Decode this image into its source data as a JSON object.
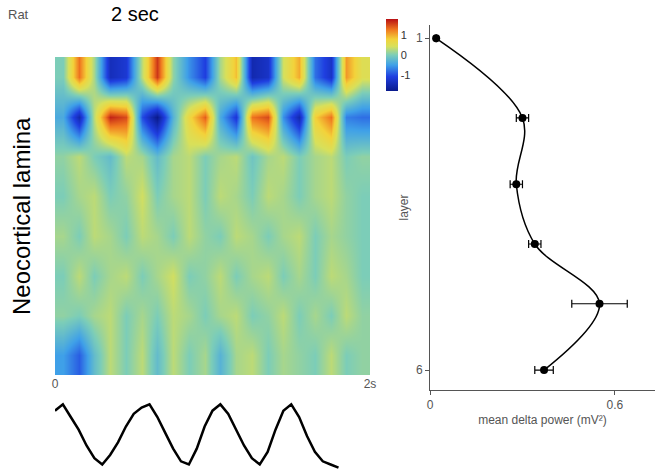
{
  "chart_data": [
    {
      "type": "heatmap",
      "title": "2 sec",
      "annotation": "Rat",
      "ylabel": "Neocortical lamina",
      "x": [
        0.05,
        0.15,
        0.25,
        0.35,
        0.45,
        0.55,
        0.65,
        0.75,
        0.85,
        0.95,
        1.05,
        1.15,
        1.25,
        1.35,
        1.45,
        1.55,
        1.65,
        1.75,
        1.85,
        1.95
      ],
      "xlim": [
        0,
        2
      ],
      "xticks": [
        0,
        {
          "value": 2,
          "label": "2s"
        }
      ],
      "tick_labels": "x",
      "z": [
        [
          0,
          1.3,
          0.2,
          -1.4,
          -1.2,
          0.3,
          1.6,
          0.1,
          -0.6,
          -1.1,
          0.2,
          0.9,
          -1.5,
          -1.3,
          0.4,
          1.0,
          -0.8,
          -1.3,
          1.1,
          0.5
        ],
        [
          -0.4,
          -1.5,
          0.3,
          1.7,
          1.5,
          -1.0,
          -1.8,
          -0.3,
          0.7,
          1.4,
          -0.4,
          -1.2,
          1.3,
          1.5,
          -0.6,
          -1.5,
          0.8,
          1.3,
          -0.7,
          -0.8
        ],
        [
          0.1,
          0.3,
          0,
          -0.2,
          0.3,
          0.2,
          -0.2,
          0.2,
          0.3,
          0,
          0.2,
          0.3,
          -0.1,
          0.2,
          0.3,
          0,
          0.2,
          0.3,
          0,
          0.1
        ],
        [
          0,
          0.2,
          0.3,
          0,
          0.1,
          0.4,
          0,
          0.2,
          0.3,
          0,
          0.3,
          0.2,
          0,
          0.3,
          0.2,
          0,
          0.2,
          0.3,
          0.1,
          0
        ],
        [
          0.2,
          0,
          0.3,
          0.2,
          0,
          0.3,
          0.2,
          0,
          0.3,
          0.1,
          0,
          0.3,
          0.2,
          0,
          0.2,
          0.3,
          0,
          0.2,
          0.1,
          0
        ],
        [
          0,
          0.3,
          0,
          0.2,
          0.3,
          0,
          0.2,
          0.4,
          0,
          0.1,
          0.3,
          0,
          0.2,
          0.3,
          0,
          0.2,
          0,
          0.3,
          0.2,
          0
        ],
        [
          0.1,
          0,
          0.2,
          0.3,
          0,
          0.2,
          0,
          0.3,
          0.2,
          0,
          0.2,
          0.3,
          0,
          0.1,
          0.3,
          0,
          0.2,
          0,
          0.3,
          0.1
        ],
        [
          -0.5,
          -0.9,
          -0.2,
          0.3,
          0,
          0.3,
          -0.2,
          0.3,
          0,
          0.2,
          -0.3,
          0.2,
          0.3,
          0,
          0.2,
          0.1,
          0,
          0.3,
          0,
          0.1
        ]
      ],
      "colorbar": {
        "range": [
          -1.8,
          1.8
        ],
        "ticks": [
          1,
          0,
          -1
        ]
      }
    },
    {
      "type": "line",
      "color": "#000000",
      "tick_labels": false,
      "x": [
        0,
        0.05,
        0.1,
        0.15,
        0.2,
        0.25,
        0.3,
        0.35,
        0.4,
        0.45,
        0.5,
        0.55,
        0.6,
        0.65,
        0.7,
        0.75,
        0.8,
        0.85,
        0.9,
        0.95,
        1.0,
        1.05,
        1.1,
        1.15,
        1.2,
        1.25,
        1.3,
        1.35,
        1.4,
        1.45,
        1.5,
        1.55,
        1.6,
        1.65,
        1.7,
        1.75,
        1.8
      ],
      "values": [
        0.8,
        1.0,
        0.6,
        0.2,
        -0.3,
        -0.7,
        -0.9,
        -0.6,
        -0.2,
        0.3,
        0.7,
        0.9,
        1.0,
        0.6,
        0.1,
        -0.4,
        -0.8,
        -0.9,
        -0.4,
        0.3,
        0.8,
        1.0,
        0.7,
        0.2,
        -0.3,
        -0.7,
        -0.9,
        -0.5,
        0.2,
        0.8,
        1.0,
        0.6,
        0.0,
        -0.5,
        -0.8,
        -0.9,
        -1.0
      ],
      "xlim": [
        0,
        2
      ],
      "ylim": [
        -1.2,
        1.2
      ]
    },
    {
      "type": "scatter",
      "color": "#000000",
      "marker": "circle",
      "line_style": "smooth",
      "x": [
        0.02,
        0.3,
        0.28,
        0.34,
        0.55,
        0.37
      ],
      "y": [
        1,
        2.2,
        3.2,
        4.1,
        5,
        6
      ],
      "error_x": [
        0,
        0.02,
        0.02,
        0.02,
        0.09,
        0.03
      ],
      "xlim": [
        0,
        0.73
      ],
      "xticks": [
        0,
        0.6
      ],
      "ylim": [
        6.3,
        0.8
      ],
      "yticks": [
        1,
        6
      ],
      "xlabel": "mean delta power (mV²)",
      "ylabel": "layer"
    }
  ]
}
